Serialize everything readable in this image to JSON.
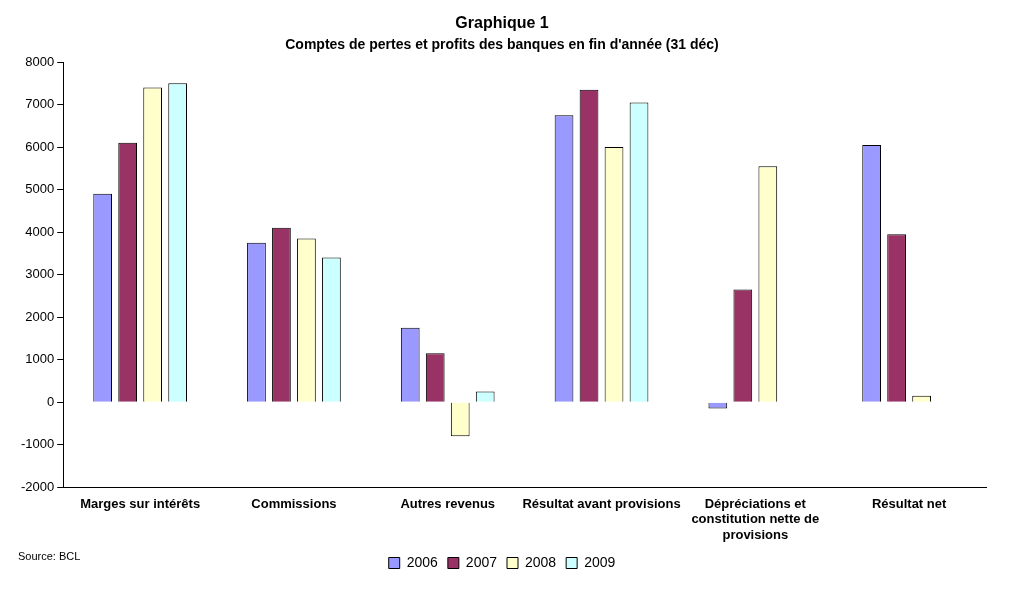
{
  "chart_data": {
    "type": "bar",
    "title": "Graphique 1",
    "subtitle": "Comptes de pertes et profits des banques en fin d'année (31 déc)",
    "categories": [
      "Marges sur intérêts",
      "Commissions",
      "Autres revenus",
      "Résultat avant provisions",
      "Dépréciations et constitution nette de provisions",
      "Résultat net"
    ],
    "series": [
      {
        "name": "2006",
        "color": "#9999ff",
        "values": [
          4900,
          3750,
          1750,
          6750,
          -150,
          6050
        ]
      },
      {
        "name": "2007",
        "color": "#993366",
        "values": [
          6100,
          4100,
          1150,
          7350,
          2650,
          3950
        ]
      },
      {
        "name": "2008",
        "color": "#ffffcc",
        "values": [
          7400,
          3850,
          -800,
          6000,
          5550,
          150
        ]
      },
      {
        "name": "2009",
        "color": "#ccffff",
        "values": [
          7500,
          3400,
          250,
          7050,
          0,
          0
        ]
      }
    ],
    "ylim": [
      -2000,
      8000
    ],
    "yticks": [
      -2000,
      -1000,
      0,
      1000,
      2000,
      3000,
      4000,
      5000,
      6000,
      7000,
      8000
    ],
    "grid": false,
    "legend": "bottom",
    "annotations": [
      "Source: BCL"
    ]
  }
}
